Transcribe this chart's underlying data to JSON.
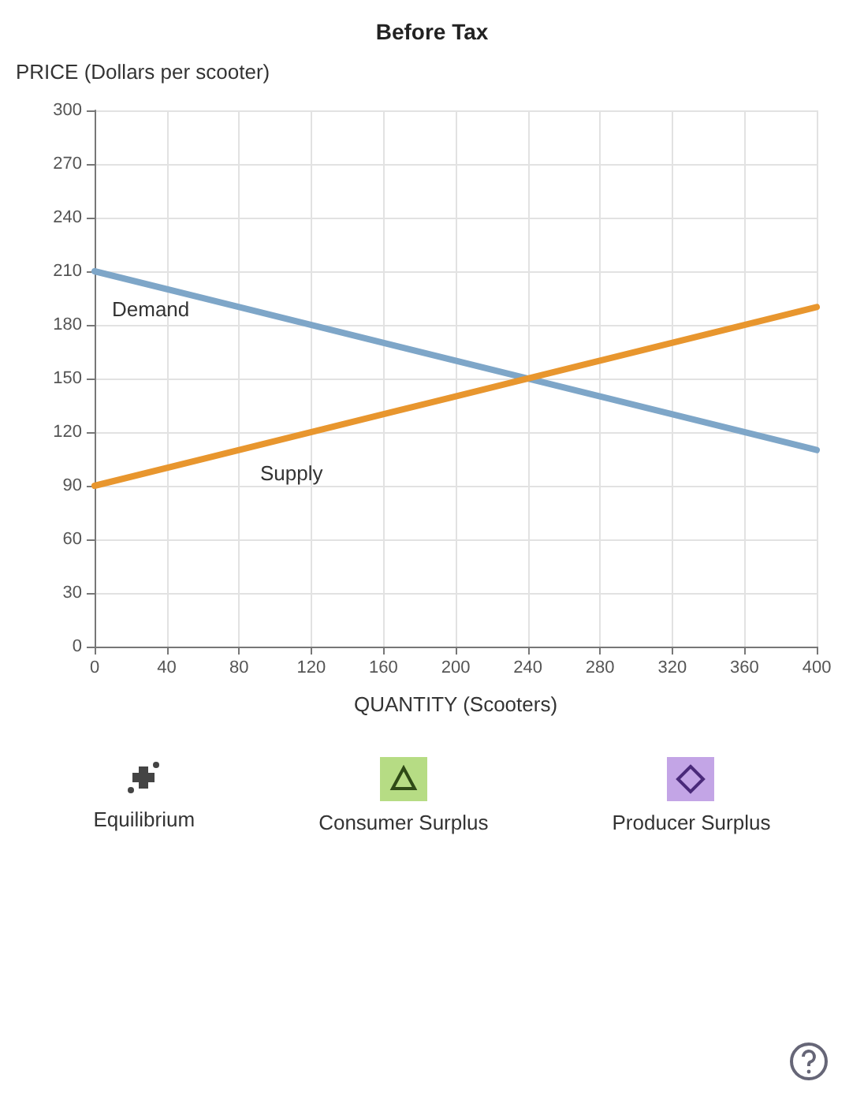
{
  "chart_data": {
    "type": "line",
    "title": "Before Tax",
    "xlabel": "QUANTITY (Scooters)",
    "ylabel": "PRICE (Dollars per scooter)",
    "x": [
      0,
      400
    ],
    "series": [
      {
        "name": "Demand",
        "color": "#7ea6c8",
        "values": [
          210,
          110
        ]
      },
      {
        "name": "Supply",
        "color": "#e8962e",
        "values": [
          90,
          190
        ]
      }
    ],
    "xlim": [
      0,
      400
    ],
    "xticks": [
      0,
      40,
      80,
      120,
      160,
      200,
      240,
      280,
      320,
      360,
      400
    ],
    "ylim": [
      0,
      300
    ],
    "yticks": [
      0,
      30,
      60,
      90,
      120,
      150,
      180,
      210,
      240,
      270,
      300
    ],
    "grid": true,
    "legend": false,
    "marker": "none",
    "line_style": "solid",
    "annotations": [
      "Equilibrium",
      "Consumer Surplus",
      "Producer Surplus"
    ]
  }
}
